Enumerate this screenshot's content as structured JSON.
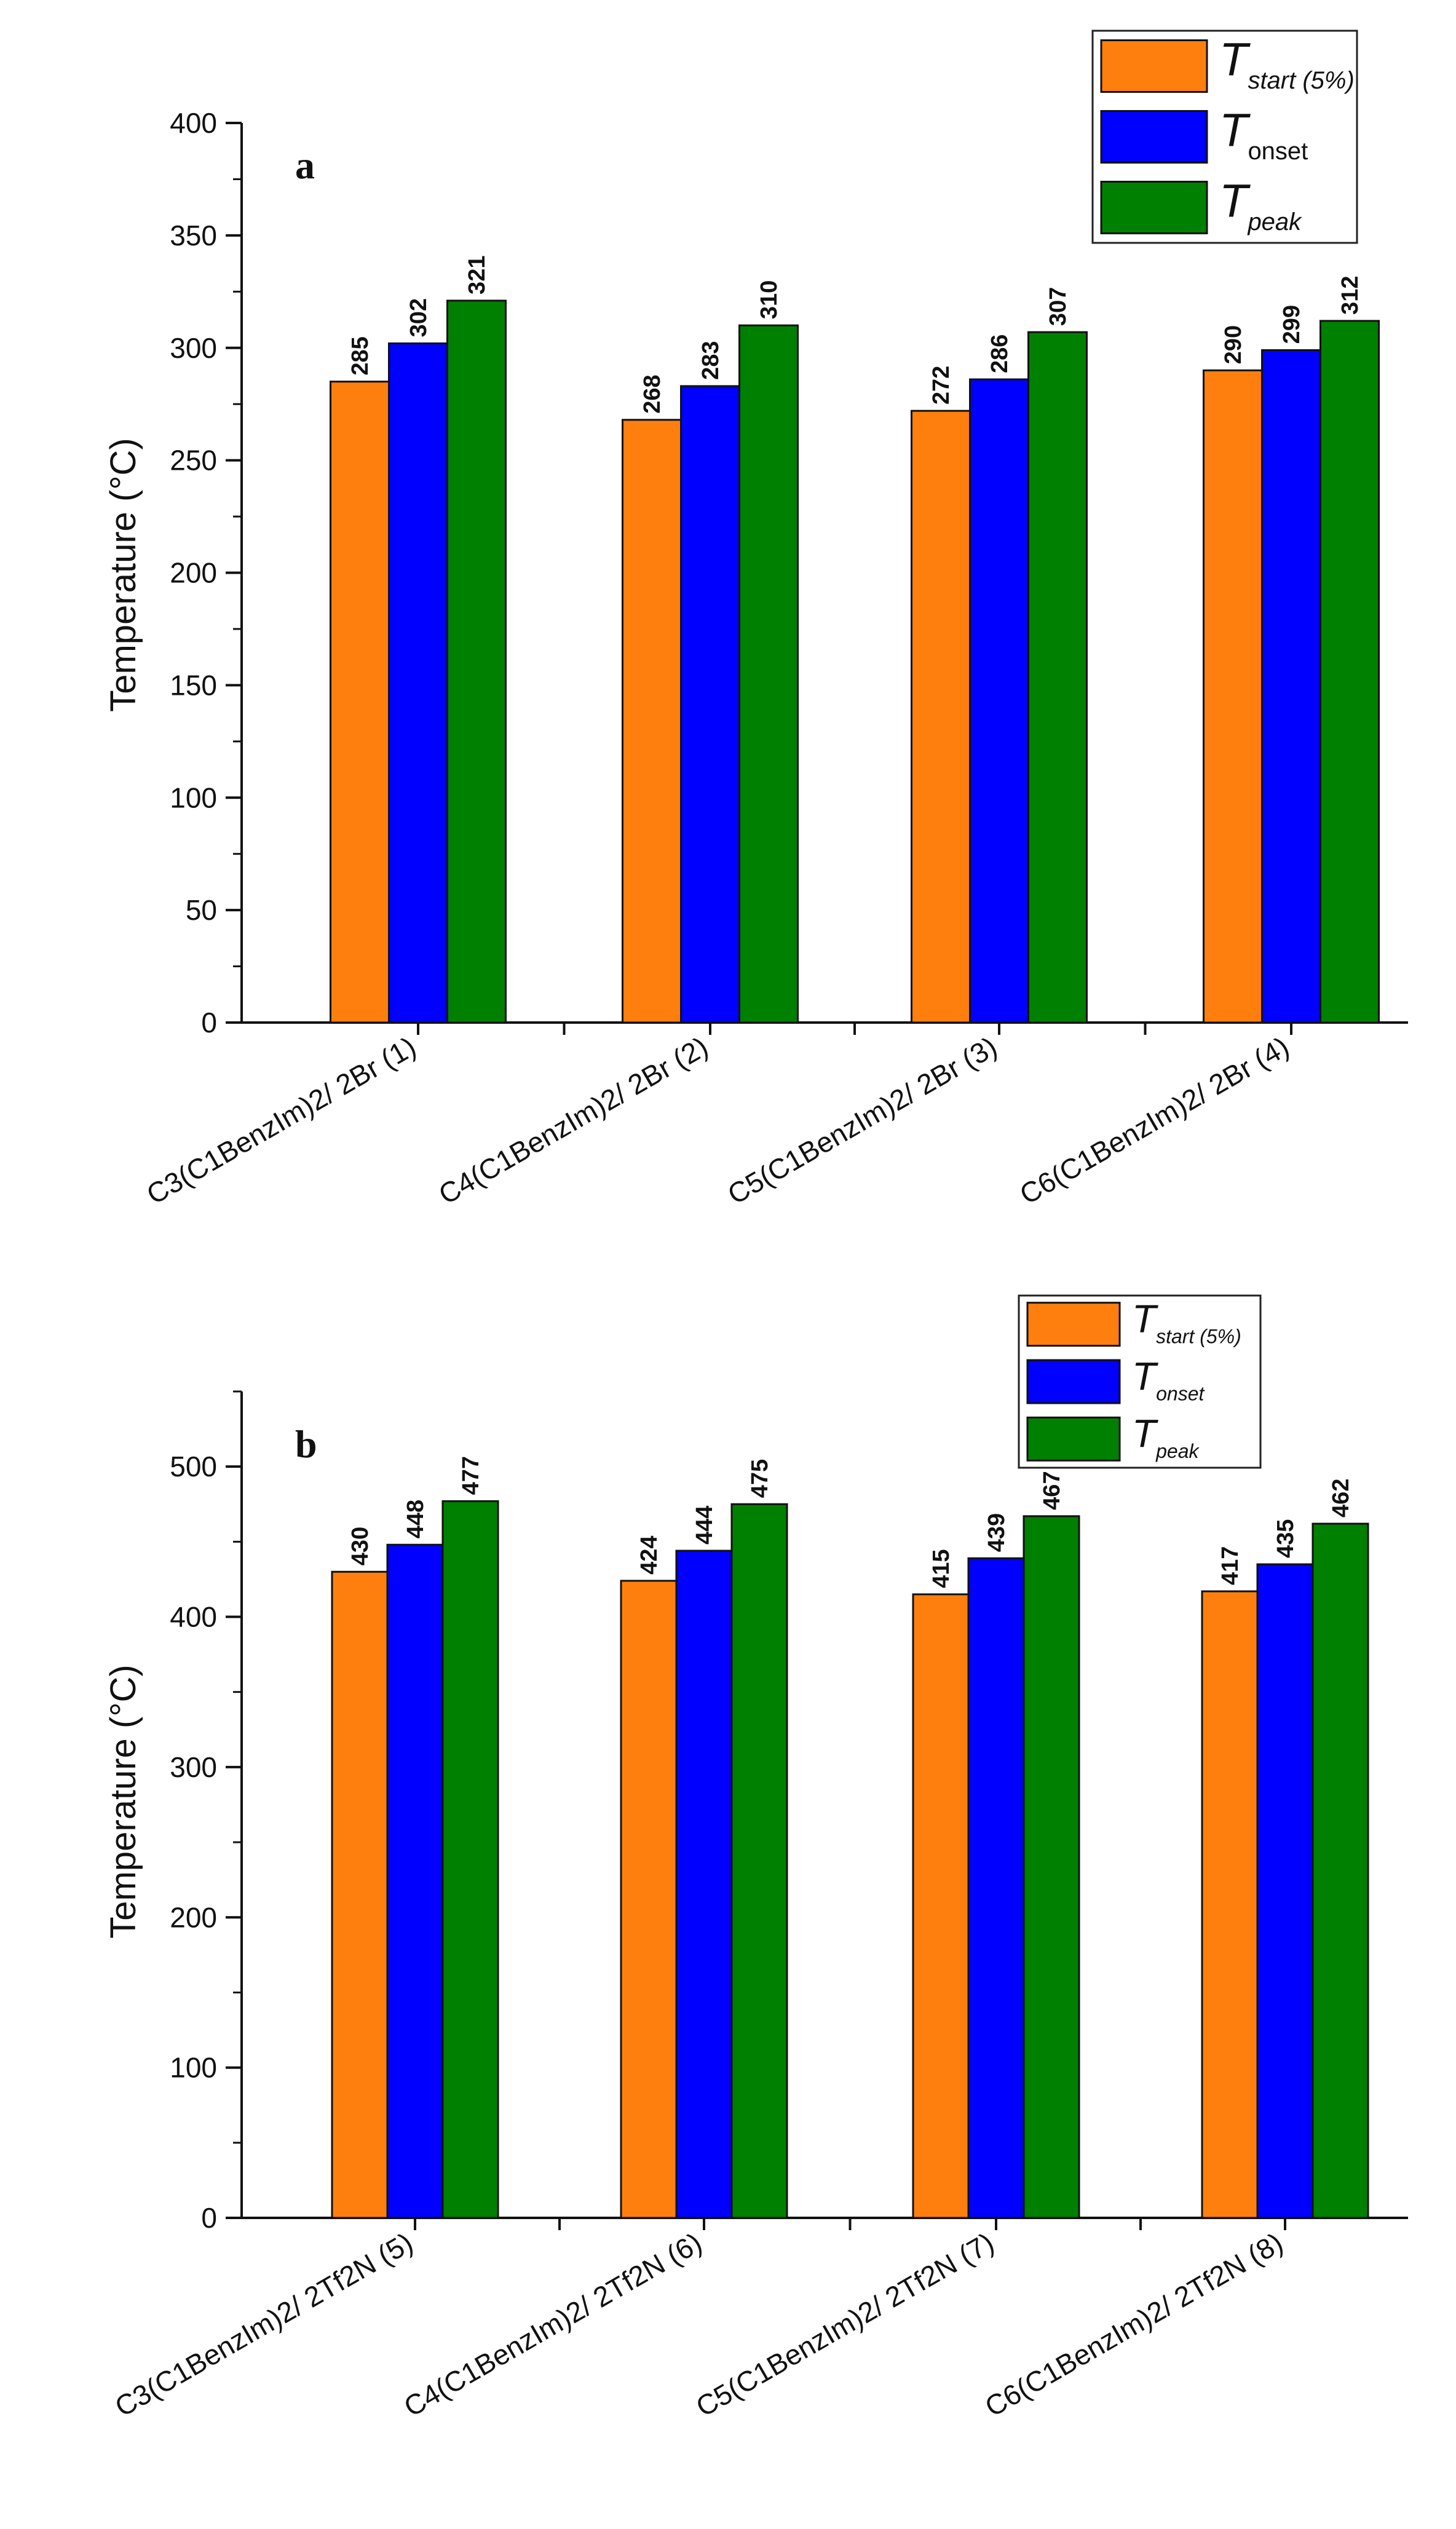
{
  "chart_data": [
    {
      "type": "bar",
      "panel_label": "a",
      "title": "",
      "xlabel": "",
      "ylabel": "Temperature (°C)",
      "ylim": [
        0,
        400
      ],
      "yticks": [
        0,
        50,
        100,
        150,
        200,
        250,
        300,
        350,
        400
      ],
      "grid": false,
      "legend_position": "top-right",
      "categories": [
        "C3(C1BenzIm)2/ 2Br (1)",
        "C4(C1BenzIm)2/ 2Br (2)",
        "C5(C1BenzIm)2/ 2Br (3)",
        "C6(C1BenzIm)2/ 2Br (4)"
      ],
      "series": [
        {
          "name": "T start (5%)",
          "legend_main": "T",
          "legend_sub": "start (5%)",
          "sub_italic": true,
          "color": "#ff7f0e",
          "values": [
            285,
            268,
            272,
            290
          ]
        },
        {
          "name": "T onset",
          "legend_main": "T",
          "legend_sub": "onset",
          "sub_italic": false,
          "color": "#0000ff",
          "values": [
            302,
            283,
            286,
            299
          ]
        },
        {
          "name": "T peak",
          "legend_main": "T",
          "legend_sub": "peak",
          "sub_italic": true,
          "color": "#008000",
          "values": [
            321,
            310,
            307,
            312
          ]
        }
      ]
    },
    {
      "type": "bar",
      "panel_label": "b",
      "title": "",
      "xlabel": "",
      "ylabel": "Temperature (°C)",
      "ylim": [
        0,
        550
      ],
      "yticks": [
        0,
        100,
        200,
        300,
        400,
        500
      ],
      "grid": false,
      "legend_position": "top-right",
      "categories": [
        "C3(C1BenzIm)2/ 2Tf2N (5)",
        "C4(C1BenzIm)2/ 2Tf2N (6)",
        "C5(C1BenzIm)2/ 2Tf2N (7)",
        "C6(C1BenzIm)2/ 2Tf2N (8)"
      ],
      "series": [
        {
          "name": "T start (5%)",
          "legend_main": "T",
          "legend_sub": "start (5%)",
          "sub_italic": true,
          "color": "#ff7f0e",
          "values": [
            430,
            424,
            415,
            417
          ]
        },
        {
          "name": "T onset",
          "legend_main": "T",
          "legend_sub": "onset",
          "sub_italic": true,
          "color": "#0000ff",
          "values": [
            448,
            444,
            439,
            435
          ]
        },
        {
          "name": "T peak",
          "legend_main": "T",
          "legend_sub": "peak",
          "sub_italic": true,
          "color": "#008000",
          "values": [
            477,
            475,
            467,
            462
          ]
        }
      ]
    }
  ]
}
